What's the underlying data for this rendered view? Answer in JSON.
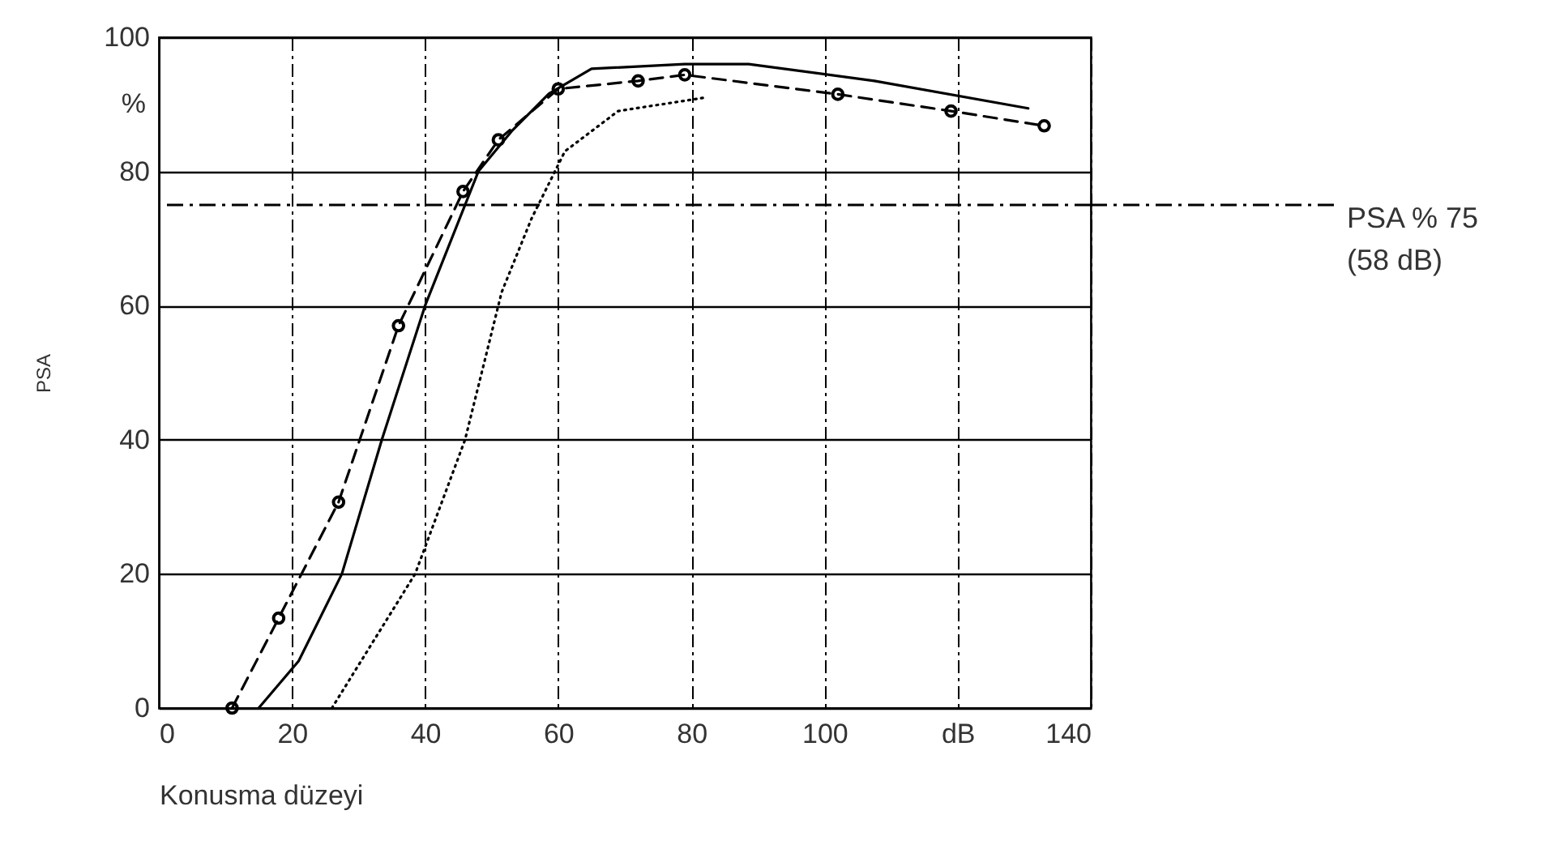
{
  "chart_data": {
    "type": "line",
    "xlabel": "Konusma düzeyi",
    "ylabel": "PSA",
    "xlim": [
      0,
      140
    ],
    "xticks": [
      0,
      20,
      40,
      60,
      80,
      100,
      {
        "value": 120,
        "label": "dB"
      },
      140
    ],
    "ylim": [
      0,
      100
    ],
    "yticks": [
      0,
      20,
      40,
      60,
      80,
      100
    ],
    "grid": true,
    "series": [
      {
        "color": "#000000",
        "line_style": "solid",
        "marker": "none",
        "x": [
          15,
          21,
          27.5,
          33.5,
          40,
          46,
          48,
          53,
          58.6,
          65,
          79,
          88.6,
          107.5,
          130.6
        ],
        "values": [
          0,
          7,
          20,
          40,
          60,
          75,
          80,
          86,
          91.6,
          95.3,
          96,
          96,
          93.5,
          89.4
        ]
      },
      {
        "color": "#000000",
        "line_style": "dashed",
        "marker": "circle",
        "x": [
          11,
          18,
          27,
          36,
          45.7,
          51,
          60,
          72,
          79,
          102,
          119,
          133
        ],
        "values": [
          0,
          13.4,
          30.7,
          57,
          77,
          84.7,
          92.3,
          93.5,
          94.4,
          91.5,
          89,
          86.8
        ]
      },
      {
        "color": "#000000",
        "line_style": "dotted",
        "marker": "none",
        "x": [
          26,
          38.5,
          46,
          51.5,
          56,
          61,
          69,
          82
        ],
        "values": [
          0,
          20,
          40,
          62,
          73,
          83,
          89,
          91
        ]
      }
    ],
    "ref_lines": [
      {
        "axis": "y",
        "value": 75,
        "label": "PSA % 75\n(58 dB)",
        "line_style": "dashdot",
        "color": "#000000"
      }
    ],
    "annotations": [
      "%"
    ]
  }
}
